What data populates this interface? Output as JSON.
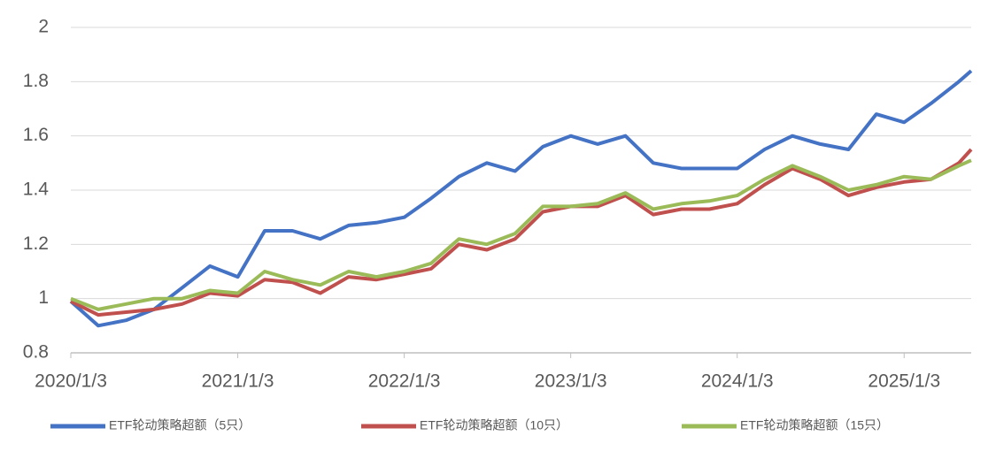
{
  "chart_data": {
    "type": "line",
    "x": [
      "2020/1/3",
      "2020/3/3",
      "2020/5/3",
      "2020/7/3",
      "2020/9/3",
      "2020/11/3",
      "2021/1/3",
      "2021/3/3",
      "2021/5/3",
      "2021/7/3",
      "2021/9/3",
      "2021/11/3",
      "2022/1/3",
      "2022/3/3",
      "2022/5/3",
      "2022/7/3",
      "2022/9/3",
      "2022/11/3",
      "2023/1/3",
      "2023/3/3",
      "2023/5/3",
      "2023/7/3",
      "2023/9/3",
      "2023/11/3",
      "2024/1/3",
      "2024/3/3",
      "2024/5/3",
      "2024/7/3",
      "2024/9/3",
      "2024/11/3",
      "2025/1/3",
      "2025/3/3",
      "2025/5/3",
      "2025/5/30"
    ],
    "series": [
      {
        "name": "ETF轮动策略超额（5只）",
        "color": "#4472c4",
        "values": [
          0.99,
          0.9,
          0.92,
          0.96,
          1.04,
          1.12,
          1.08,
          1.25,
          1.25,
          1.22,
          1.27,
          1.28,
          1.3,
          1.37,
          1.45,
          1.5,
          1.47,
          1.56,
          1.6,
          1.57,
          1.6,
          1.5,
          1.48,
          1.48,
          1.48,
          1.55,
          1.6,
          1.57,
          1.55,
          1.68,
          1.65,
          1.72,
          1.8,
          1.84
        ]
      },
      {
        "name": "ETF轮动策略超额（10只）",
        "color": "#c0504d",
        "values": [
          0.99,
          0.94,
          0.95,
          0.96,
          0.98,
          1.02,
          1.01,
          1.07,
          1.06,
          1.02,
          1.08,
          1.07,
          1.09,
          1.11,
          1.2,
          1.18,
          1.22,
          1.32,
          1.34,
          1.34,
          1.38,
          1.31,
          1.33,
          1.33,
          1.35,
          1.42,
          1.48,
          1.44,
          1.38,
          1.41,
          1.43,
          1.44,
          1.5,
          1.55
        ]
      },
      {
        "name": "ETF轮动策略超额（15只）",
        "color": "#9bbb59",
        "values": [
          1.0,
          0.96,
          0.98,
          1.0,
          1.0,
          1.03,
          1.02,
          1.1,
          1.07,
          1.05,
          1.1,
          1.08,
          1.1,
          1.13,
          1.22,
          1.2,
          1.24,
          1.34,
          1.34,
          1.35,
          1.39,
          1.33,
          1.35,
          1.36,
          1.38,
          1.44,
          1.49,
          1.45,
          1.4,
          1.42,
          1.45,
          1.44,
          1.49,
          1.51
        ]
      }
    ],
    "xlim": [
      "2020/1/3",
      "2025/5/30"
    ],
    "xticks": [
      "2020/1/3",
      "2021/1/3",
      "2022/1/3",
      "2023/1/3",
      "2024/1/3",
      "2025/1/3"
    ],
    "ylim": [
      0.8,
      2
    ],
    "yticks": [
      0.8,
      1,
      1.2,
      1.4,
      1.6,
      1.8,
      2
    ],
    "grid": true,
    "legend": "bottom"
  }
}
